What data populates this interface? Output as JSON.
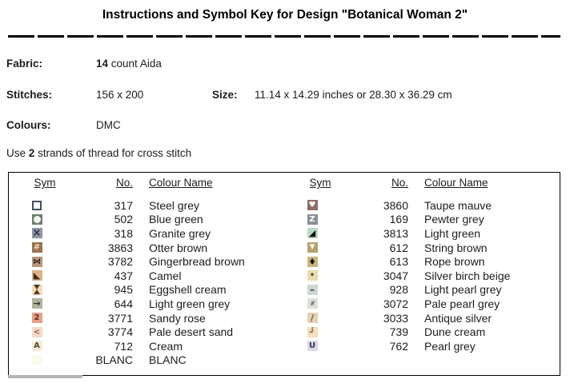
{
  "title": "Instructions and Symbol Key for Design \"Botanical Woman 2\"",
  "info": {
    "fabric_label": "Fabric:",
    "fabric_value_bold": "14",
    "fabric_value_rest": " count Aida",
    "stitches_label": "Stitches:",
    "stitches_value": "156 x 200",
    "size_label": "Size:",
    "size_value": "11.14 x 14.29 inches or 28.30 x 36.29 cm",
    "colours_label": "Colours:",
    "colours_value": "DMC",
    "note_prefix": "Use ",
    "note_bold": "2",
    "note_suffix": " strands of thread for cross stitch"
  },
  "key_table": {
    "headers": [
      "Sym",
      "No.",
      "Colour Name"
    ],
    "left_rows": [
      {
        "no": "317",
        "name": "Steel grey",
        "sym": {
          "icon": "square-outline-icon",
          "shape": "square-outline",
          "glyph": "",
          "bg": "#ffffff",
          "fg": "#46505e"
        }
      },
      {
        "no": "502",
        "name": "Blue green",
        "sym": {
          "icon": "circle-icon",
          "shape": "circle",
          "glyph": "",
          "bg": "#6d7f71",
          "fg": "#f5f7f0"
        }
      },
      {
        "no": "318",
        "name": "Granite grey",
        "sym": {
          "icon": "x-icon",
          "glyph": "×",
          "bg": "#8d96a2",
          "fg": "#272f3a"
        }
      },
      {
        "no": "3863",
        "name": "Otter brown",
        "sym": {
          "icon": "sharp-icon",
          "glyph": "#",
          "bg": "#9b7351",
          "fg": "#eedfc6"
        }
      },
      {
        "no": "3782",
        "name": "Gingerbread brown",
        "sym": {
          "icon": "bowtie-icon",
          "glyph": "⋈",
          "bg": "#b7977b",
          "fg": "#33251a"
        }
      },
      {
        "no": "437",
        "name": "Camel",
        "sym": {
          "icon": "triangle-lower-left-icon",
          "glyph": "◣",
          "bg": "#ddb288",
          "fg": "#3a2c1c"
        }
      },
      {
        "no": "945",
        "name": "Eggshell cream",
        "sym": {
          "icon": "hourglass-icon",
          "shape": "hourglass",
          "glyph": "",
          "bg": "#f4dabc",
          "fg": "#503c28"
        }
      },
      {
        "no": "644",
        "name": "Light green grey",
        "sym": {
          "icon": "arrow-right-icon",
          "glyph": "→",
          "bg": "#b2b39b",
          "fg": "#2e3026"
        }
      },
      {
        "no": "3771",
        "name": "Sandy rose",
        "sym": {
          "icon": "digit-2-icon",
          "glyph": "2",
          "bg": "#e6a189",
          "fg": "#64301f"
        }
      },
      {
        "no": "3774",
        "name": "Pale desert sand",
        "sym": {
          "icon": "less-than-icon",
          "glyph": "<",
          "bg": "#f3dacc",
          "fg": "#9e5a45"
        }
      },
      {
        "no": "712",
        "name": "Cream",
        "sym": {
          "icon": "letter-a-icon",
          "glyph": "A",
          "bg": "#f4ecd6",
          "fg": "#54482f"
        }
      },
      {
        "no": "BLANC",
        "name": "BLANC",
        "sym": {
          "icon": "blank-icon",
          "glyph": "",
          "bg": "#fbfaf1",
          "fg": "#fbfaf1"
        }
      }
    ],
    "right_rows": [
      {
        "no": "3860",
        "name": "Taupe mauve",
        "sym": {
          "icon": "heart-icon",
          "glyph": "♥",
          "bg": "#906b64",
          "fg": "#ffffff"
        }
      },
      {
        "no": "169",
        "name": "Pewter grey",
        "sym": {
          "icon": "letter-z-icon",
          "glyph": "Z",
          "bg": "#878e95",
          "fg": "#ffffff"
        }
      },
      {
        "no": "3813",
        "name": "Light green",
        "sym": {
          "icon": "triangle-lower-right-icon",
          "glyph": "◢",
          "bg": "#b9d9c7",
          "fg": "#0f140e"
        }
      },
      {
        "no": "612",
        "name": "String brown",
        "sym": {
          "icon": "triangle-down-icon",
          "glyph": "▼",
          "bg": "#b6a171",
          "fg": "#f8f5e9"
        }
      },
      {
        "no": "613",
        "name": "Rope brown",
        "sym": {
          "icon": "diamond-icon",
          "glyph": "♦",
          "bg": "#c9b582",
          "fg": "#181306"
        }
      },
      {
        "no": "3047",
        "name": "Silver birch beige",
        "sym": {
          "icon": "dot-icon",
          "glyph": "•",
          "bg": "#e7ddb1",
          "fg": "#565039"
        }
      },
      {
        "no": "928",
        "name": "Light pearl grey",
        "sym": {
          "icon": "dash-icon",
          "glyph": "–",
          "bg": "#cdd8d1",
          "fg": "#38423c"
        }
      },
      {
        "no": "3072",
        "name": "Pale pearl grey",
        "sym": {
          "icon": "triple-slash-icon",
          "glyph": "///",
          "bg": "#dce2d9",
          "fg": "#3d4944"
        }
      },
      {
        "no": "3033",
        "name": "Antique silver",
        "sym": {
          "icon": "slash-icon",
          "glyph": "/",
          "bg": "#e1d2b3",
          "fg": "#73503b"
        }
      },
      {
        "no": "739",
        "name": "Dune cream",
        "sym": {
          "icon": "corner-icon",
          "glyph": "┘",
          "bg": "#f6ddbb",
          "fg": "#2e2e2e"
        }
      },
      {
        "no": "762",
        "name": "Pearl grey",
        "sym": {
          "icon": "letter-u-icon",
          "glyph": "U",
          "bg": "#d9dae2",
          "fg": "#34345a"
        }
      }
    ]
  }
}
